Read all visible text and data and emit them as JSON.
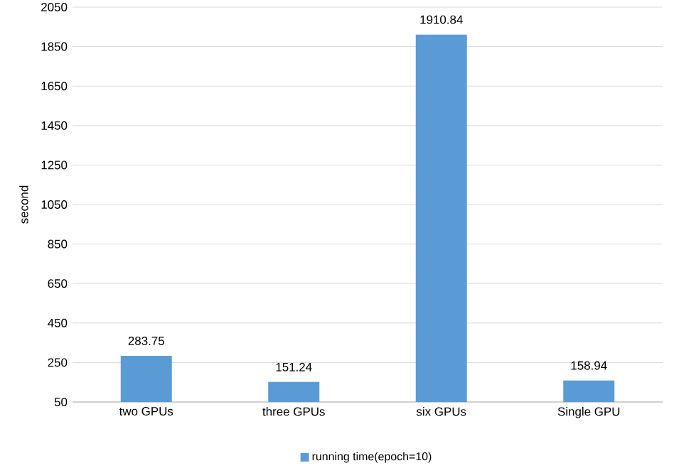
{
  "chart_data": {
    "type": "bar",
    "ylabel": "second",
    "categories": [
      "two GPUs",
      "three GPUs",
      "six GPUs",
      "Single GPU"
    ],
    "series": [
      {
        "name": "running time(epoch=10)",
        "color": "#5b9bd5",
        "values": [
          283.75,
          151.24,
          1910.84,
          158.94
        ]
      }
    ],
    "ylim": [
      50,
      2050
    ],
    "yticks": [
      50,
      250,
      450,
      650,
      850,
      1050,
      1250,
      1450,
      1650,
      1850,
      2050
    ],
    "grid": "y",
    "legend": "bottom",
    "data_labels": true
  }
}
